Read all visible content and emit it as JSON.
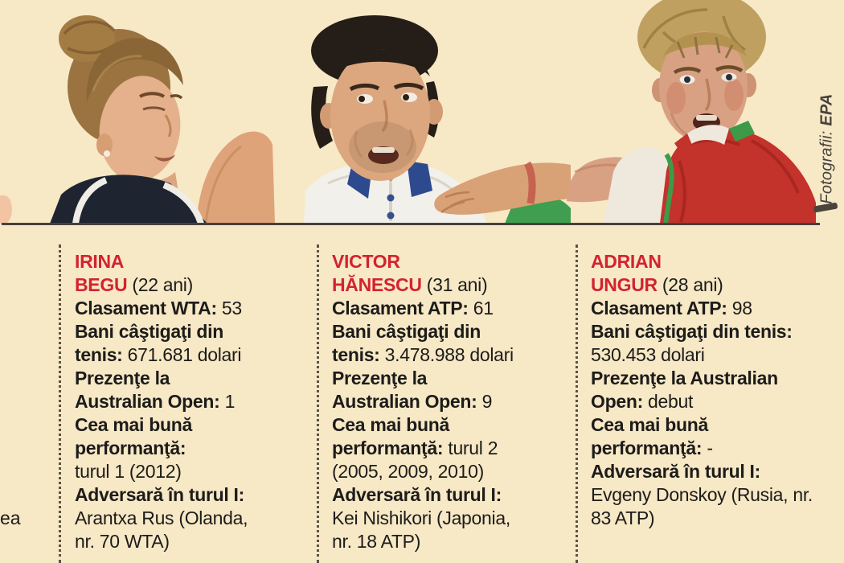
{
  "attribution": {
    "label": "Fotografii: ",
    "agency": "EPA"
  },
  "edge_fragment": {
    "text": "ea"
  },
  "colors": {
    "background": "#f7e8c6",
    "accent_red": "#d2232f",
    "text": "#1d1c1a",
    "divider": "#5a5244",
    "rule": "#47413a",
    "credit": "#46423c"
  },
  "players": [
    {
      "id": "irina-begu",
      "lines": [
        [
          {
            "t": "IRINA",
            "s": "n"
          }
        ],
        [
          {
            "t": "BEGU",
            "s": "n"
          },
          {
            "t": " (22 ani)",
            "s": "r"
          }
        ],
        [
          {
            "t": "Clasament WTA:",
            "s": "b"
          },
          {
            "t": " 53",
            "s": "r"
          }
        ],
        [
          {
            "t": "Bani câştigaţi din",
            "s": "b"
          }
        ],
        [
          {
            "t": "tenis:",
            "s": "b"
          },
          {
            "t": " 671.681 dolari",
            "s": "r"
          }
        ],
        [
          {
            "t": "Prezenţe la",
            "s": "b"
          }
        ],
        [
          {
            "t": "Australian Open:",
            "s": "b"
          },
          {
            "t": " 1",
            "s": "r"
          }
        ],
        [
          {
            "t": "Cea mai bună",
            "s": "b"
          }
        ],
        [
          {
            "t": "performanţă:",
            "s": "b"
          }
        ],
        [
          {
            "t": "turul 1 (2012)",
            "s": "r"
          }
        ],
        [
          {
            "t": "Adversară în turul I:",
            "s": "b"
          }
        ],
        [
          {
            "t": "Arantxa Rus (Olanda,",
            "s": "r"
          }
        ],
        [
          {
            "t": "nr. 70 WTA)",
            "s": "r"
          }
        ]
      ]
    },
    {
      "id": "victor-hanescu",
      "lines": [
        [
          {
            "t": "VICTOR",
            "s": "n"
          }
        ],
        [
          {
            "t": "HĂNESCU",
            "s": "n"
          },
          {
            "t": " (31 ani)",
            "s": "r"
          }
        ],
        [
          {
            "t": "Clasament ATP:",
            "s": "b"
          },
          {
            "t": " 61",
            "s": "r"
          }
        ],
        [
          {
            "t": "Bani câştigaţi din",
            "s": "b"
          }
        ],
        [
          {
            "t": "tenis:",
            "s": "b"
          },
          {
            "t": " 3.478.988 dolari",
            "s": "r"
          }
        ],
        [
          {
            "t": "Prezenţe la",
            "s": "b"
          }
        ],
        [
          {
            "t": "Australian Open:",
            "s": "b"
          },
          {
            "t": " 9",
            "s": "r"
          }
        ],
        [
          {
            "t": "Cea mai bună",
            "s": "b"
          }
        ],
        [
          {
            "t": "performanţă:",
            "s": "b"
          },
          {
            "t": " turul 2",
            "s": "r"
          }
        ],
        [
          {
            "t": "(2005, 2009, 2010)",
            "s": "r"
          }
        ],
        [
          {
            "t": "Adversară în turul I:",
            "s": "b"
          }
        ],
        [
          {
            "t": "Kei Nishikori (Japonia,",
            "s": "r"
          }
        ],
        [
          {
            "t": "nr. 18 ATP)",
            "s": "r"
          }
        ]
      ]
    },
    {
      "id": "adrian-ungur",
      "lines": [
        [
          {
            "t": "ADRIAN",
            "s": "n"
          }
        ],
        [
          {
            "t": "UNGUR",
            "s": "n"
          },
          {
            "t": " (28 ani)",
            "s": "r"
          }
        ],
        [
          {
            "t": "Clasament ATP:",
            "s": "b"
          },
          {
            "t": " 98",
            "s": "r"
          }
        ],
        [
          {
            "t": "Bani câştigaţi din tenis:",
            "s": "b"
          }
        ],
        [
          {
            "t": "530.453 dolari",
            "s": "r"
          }
        ],
        [
          {
            "t": "Prezenţe la Australian",
            "s": "b"
          }
        ],
        [
          {
            "t": "Open:",
            "s": "b"
          },
          {
            "t": " debut",
            "s": "r"
          }
        ],
        [
          {
            "t": "Cea mai bună",
            "s": "b"
          }
        ],
        [
          {
            "t": "performanţă:",
            "s": "b"
          },
          {
            "t": " -",
            "s": "r"
          }
        ],
        [
          {
            "t": "Adversară în turul I:",
            "s": "b"
          }
        ],
        [
          {
            "t": "Evgeny Donskoy (Rusia, nr.",
            "s": "r"
          }
        ],
        [
          {
            "t": "83 ATP)",
            "s": "r"
          }
        ]
      ]
    }
  ]
}
